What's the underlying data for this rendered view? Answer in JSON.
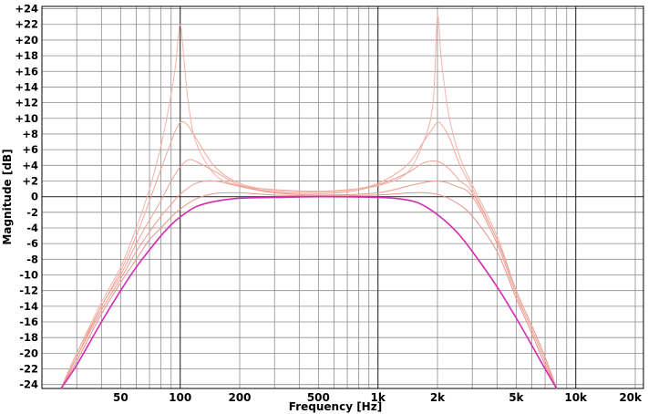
{
  "chart_data": {
    "type": "line",
    "xlabel": "Frequency [Hz]",
    "ylabel": "Magnitude [dB]",
    "x_scale": "log",
    "xlim": [
      20,
      22000
    ],
    "ylim": [
      -24.5,
      24.3
    ],
    "grid": true,
    "y_ticks": [
      {
        "value": 24,
        "label": "+24"
      },
      {
        "value": 22,
        "label": "+22"
      },
      {
        "value": 20,
        "label": "+20"
      },
      {
        "value": 18,
        "label": "+18"
      },
      {
        "value": 16,
        "label": "+16"
      },
      {
        "value": 14,
        "label": "+14"
      },
      {
        "value": 12,
        "label": "+12"
      },
      {
        "value": 10,
        "label": "+10"
      },
      {
        "value": 8,
        "label": "+8"
      },
      {
        "value": 6,
        "label": "+6"
      },
      {
        "value": 4,
        "label": "+4"
      },
      {
        "value": 2,
        "label": "+2"
      },
      {
        "value": 0,
        "label": "0"
      },
      {
        "value": -2,
        "label": "-2"
      },
      {
        "value": -4,
        "label": "-4"
      },
      {
        "value": -6,
        "label": "-6"
      },
      {
        "value": -8,
        "label": "-8"
      },
      {
        "value": -10,
        "label": "-10"
      },
      {
        "value": -12,
        "label": "-12"
      },
      {
        "value": -14,
        "label": "-14"
      },
      {
        "value": -16,
        "label": "-16"
      },
      {
        "value": -18,
        "label": "-18"
      },
      {
        "value": -20,
        "label": "-20"
      },
      {
        "value": -22,
        "label": "-22"
      },
      {
        "value": -24,
        "label": "-24"
      }
    ],
    "x_ticks": [
      {
        "value": 50,
        "label": "50"
      },
      {
        "value": 100,
        "label": "100"
      },
      {
        "value": 200,
        "label": "200"
      },
      {
        "value": 500,
        "label": "500"
      },
      {
        "value": 1000,
        "label": "1k"
      },
      {
        "value": 2000,
        "label": "2k"
      },
      {
        "value": 5000,
        "label": "5k"
      },
      {
        "value": 10000,
        "label": "10k"
      },
      {
        "value": 20000,
        "label": "20k"
      }
    ],
    "series": [
      {
        "color": "#f4b3a8",
        "x": [
          25,
          30,
          40,
          50,
          60,
          70,
          80,
          90,
          95,
          100,
          105,
          110,
          120,
          150,
          200,
          300,
          500,
          700,
          1000,
          1400,
          1700,
          1900,
          2000,
          2100,
          2300,
          2600,
          3000,
          4000,
          5000,
          6000,
          7000,
          8000
        ],
        "y": [
          -24.5,
          -20,
          -13.5,
          -9,
          -4,
          1,
          6.5,
          13,
          17,
          22,
          17,
          12,
          7,
          2.8,
          1.4,
          0.9,
          0.7,
          0.9,
          1.4,
          3,
          7,
          12,
          23,
          17,
          10,
          5,
          1.5,
          -5,
          -12,
          -16.5,
          -20.5,
          -24.5
        ]
      },
      {
        "color": "#f4a99c",
        "x": [
          25,
          30,
          40,
          50,
          60,
          70,
          80,
          90,
          95,
          100,
          105,
          110,
          120,
          150,
          200,
          300,
          500,
          700,
          1000,
          1400,
          1700,
          1900,
          2000,
          2100,
          2300,
          2600,
          3000,
          4000,
          5000,
          6000,
          7000,
          8000
        ],
        "y": [
          -24.5,
          -20,
          -14,
          -9.5,
          -5,
          -0.5,
          3.5,
          7,
          8.5,
          9.5,
          9.5,
          9,
          7.5,
          3.8,
          1.7,
          0.8,
          0.6,
          0.8,
          1.7,
          4,
          7,
          8.8,
          9.5,
          9.2,
          7.5,
          4,
          1,
          -5.5,
          -12,
          -16.5,
          -20.5,
          -24.5
        ]
      },
      {
        "color": "#f0a294",
        "x": [
          25,
          30,
          40,
          50,
          60,
          70,
          80,
          90,
          100,
          110,
          120,
          150,
          200,
          300,
          500,
          700,
          1000,
          1400,
          1700,
          2000,
          2300,
          2600,
          3000,
          4000,
          5000,
          6000,
          7000,
          8000
        ],
        "y": [
          -24.5,
          -20.5,
          -14,
          -10,
          -6,
          -3,
          -0.5,
          2,
          3.8,
          4.7,
          4.5,
          3.2,
          1.5,
          0.6,
          0.4,
          0.6,
          1.5,
          3,
          4.3,
          4.5,
          3.5,
          2,
          0.5,
          -5.5,
          -12,
          -16.5,
          -20.5,
          -24.5
        ]
      },
      {
        "color": "#eb9a8d",
        "x": [
          25,
          30,
          40,
          50,
          60,
          70,
          80,
          90,
          100,
          120,
          150,
          200,
          300,
          500,
          1000,
          1500,
          2000,
          2500,
          3000,
          4000,
          5000,
          6000,
          7000,
          8000
        ],
        "y": [
          -24.5,
          -20.5,
          -14.5,
          -10.5,
          -7,
          -4.5,
          -2.5,
          -1,
          0.3,
          1.7,
          2,
          1.3,
          0.5,
          0.2,
          0.5,
          1.5,
          2,
          1.3,
          0,
          -6,
          -12.5,
          -17,
          -21,
          -24.5
        ]
      },
      {
        "color": "#e8928a",
        "x": [
          25,
          30,
          40,
          50,
          60,
          70,
          80,
          90,
          100,
          120,
          150,
          200,
          300,
          500,
          1000,
          1500,
          2000,
          2500,
          3000,
          4000,
          5000,
          6000,
          7000,
          8000
        ],
        "y": [
          -24.5,
          -21,
          -15,
          -11,
          -8,
          -5.5,
          -4,
          -2.6,
          -1.6,
          -0.3,
          0.4,
          0.5,
          0.2,
          0.1,
          0.2,
          0.5,
          0.3,
          -0.8,
          -2.5,
          -7,
          -13,
          -17.5,
          -21.5,
          -24.5
        ]
      },
      {
        "color": "#d629b4",
        "width": 1.6,
        "x": [
          25,
          30,
          40,
          50,
          60,
          70,
          80,
          90,
          100,
          120,
          150,
          200,
          300,
          500,
          1000,
          1300,
          1600,
          2000,
          2500,
          3000,
          4000,
          5000,
          6000,
          7000,
          8000
        ],
        "y": [
          -24.5,
          -21.5,
          -16,
          -12,
          -9,
          -6.8,
          -5,
          -3.6,
          -2.6,
          -1.3,
          -0.6,
          -0.2,
          -0.1,
          0,
          -0.1,
          -0.3,
          -0.8,
          -2.3,
          -4.5,
          -7,
          -11.5,
          -15.5,
          -19,
          -22,
          -24.5
        ]
      }
    ]
  }
}
